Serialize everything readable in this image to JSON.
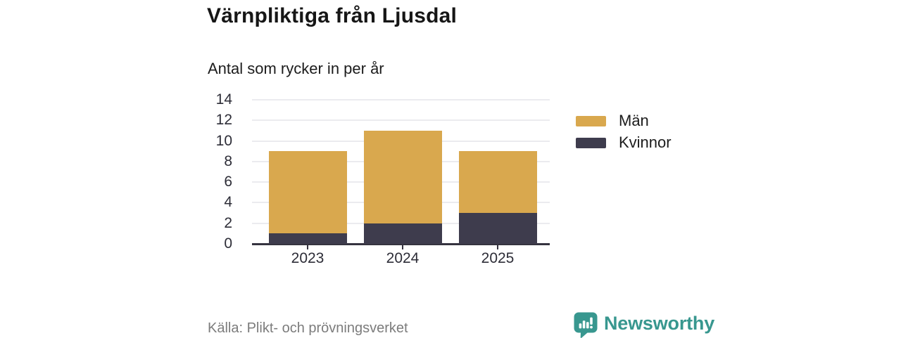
{
  "title": "Värnpliktiga från Ljusdal",
  "subtitle": "Antal som rycker in per år",
  "source": "Källa: Plikt- och prövningsverket",
  "brand": {
    "name": "Newsworthy",
    "color": "#38978f"
  },
  "colors": {
    "man": "#d9a84e",
    "kvinnor": "#3e3c4d",
    "gridline": "#ebebef",
    "axis": "#35333f",
    "accent": "#38978f"
  },
  "chart_data": {
    "type": "bar",
    "stacked": true,
    "title": "Värnpliktiga från Ljusdal",
    "subtitle": "Antal som rycker in per år",
    "categories": [
      "2023",
      "2024",
      "2025"
    ],
    "series": [
      {
        "name": "Kvinnor",
        "values": [
          1,
          2,
          3
        ],
        "color": "#3e3c4d"
      },
      {
        "name": "Män",
        "values": [
          8,
          9,
          6
        ],
        "color": "#d9a84e"
      }
    ],
    "totals": [
      9,
      11,
      9
    ],
    "legend": [
      {
        "label": "Män",
        "color": "#d9a84e"
      },
      {
        "label": "Kvinnor",
        "color": "#3e3c4d"
      }
    ],
    "legend_position": "right",
    "xlabel": "",
    "ylabel": "",
    "ylim": [
      0,
      14
    ],
    "yticks": [
      0,
      2,
      4,
      6,
      8,
      10,
      12,
      14
    ],
    "grid": true
  }
}
